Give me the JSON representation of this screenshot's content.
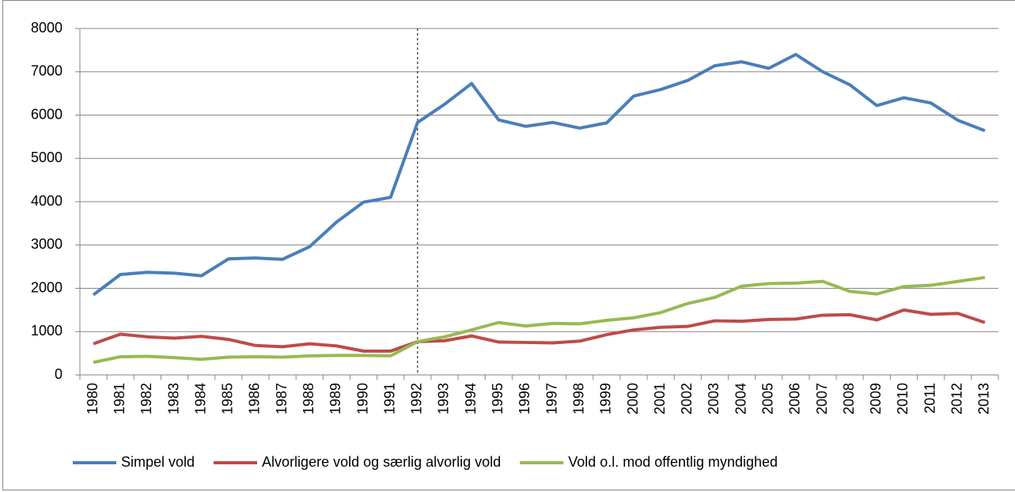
{
  "chart_data": {
    "type": "line",
    "categories": [
      "1980",
      "1981",
      "1982",
      "1983",
      "1984",
      "1985",
      "1986",
      "1987",
      "1988",
      "1989",
      "1990",
      "1991",
      "1992",
      "1993",
      "1994",
      "1995",
      "1996",
      "1997",
      "1998",
      "1999",
      "2000",
      "2001",
      "2002",
      "2003",
      "2004",
      "2005",
      "2006",
      "2007",
      "2008",
      "2009",
      "2010",
      "2011",
      "2012",
      "2013"
    ],
    "series": [
      {
        "name": "Simpel vold",
        "color": "#4a7ebb",
        "values": [
          1850,
          2320,
          2370,
          2350,
          2290,
          2680,
          2700,
          2670,
          2960,
          3530,
          3990,
          4100,
          5830,
          6250,
          6730,
          5890,
          5740,
          5830,
          5700,
          5820,
          6440,
          6590,
          6800,
          7140,
          7230,
          7080,
          7400,
          7000,
          6700,
          6220,
          6400,
          6280,
          5880,
          5640
        ]
      },
      {
        "name": "Alvorligere vold og særlig alvorlig vold",
        "color": "#be4b48",
        "values": [
          720,
          940,
          880,
          850,
          890,
          820,
          680,
          650,
          720,
          670,
          550,
          550,
          770,
          790,
          900,
          760,
          750,
          740,
          780,
          930,
          1040,
          1100,
          1120,
          1250,
          1240,
          1280,
          1290,
          1380,
          1390,
          1270,
          1500,
          1400,
          1420,
          1210
        ]
      },
      {
        "name": "Vold o.l. mod offentlig myndighed",
        "color": "#98b954",
        "values": [
          290,
          420,
          430,
          400,
          360,
          410,
          420,
          410,
          440,
          450,
          450,
          440,
          770,
          880,
          1040,
          1210,
          1130,
          1190,
          1180,
          1260,
          1320,
          1440,
          1650,
          1790,
          2050,
          2110,
          2120,
          2160,
          1930,
          1870,
          2040,
          2070,
          2160,
          2250
        ]
      }
    ],
    "ylim": [
      0,
      8000
    ],
    "yticks": [
      0,
      1000,
      2000,
      3000,
      4000,
      5000,
      6000,
      7000,
      8000
    ],
    "grid": true,
    "legend": "bottom",
    "vline": "1992"
  }
}
